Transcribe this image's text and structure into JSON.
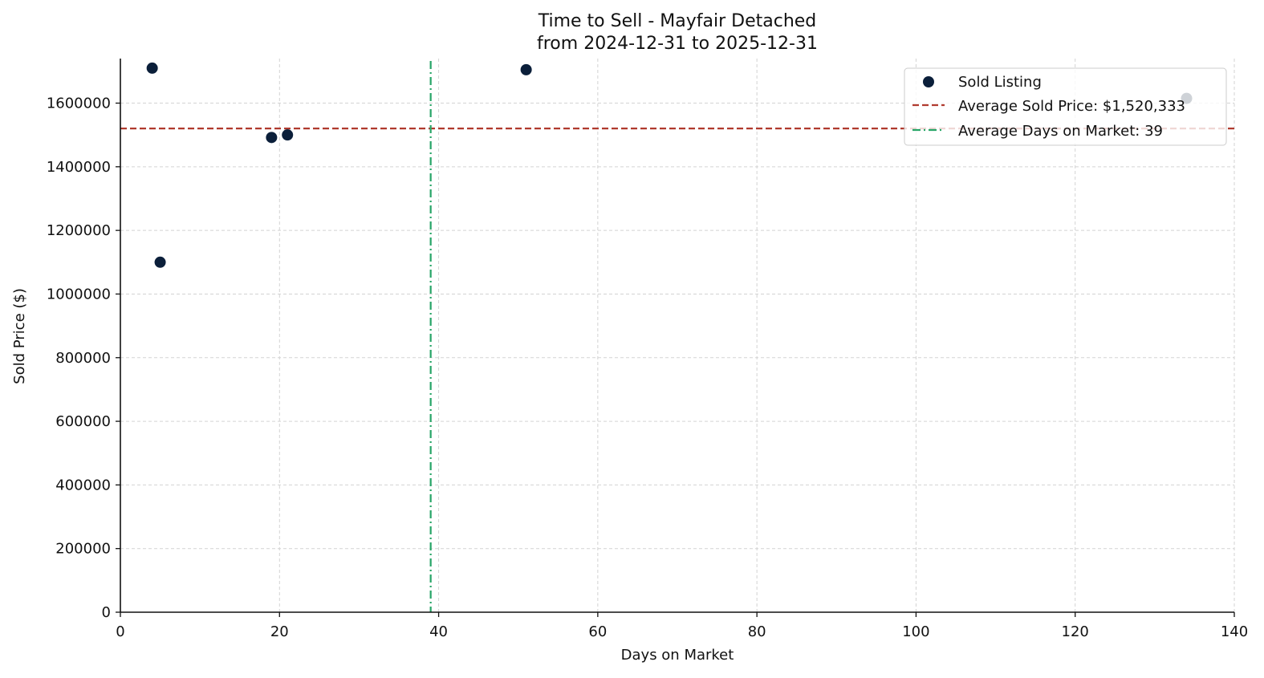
{
  "chart_data": {
    "type": "scatter",
    "title": "Time to Sell - Mayfair Detached",
    "subtitle": "from 2024-12-31 to 2025-12-31",
    "xlabel": "Days on Market",
    "ylabel": "Sold Price ($)",
    "xlim": [
      0,
      140
    ],
    "ylim": [
      0,
      1740000
    ],
    "xticks": [
      0,
      20,
      40,
      60,
      80,
      100,
      120,
      140
    ],
    "yticks": [
      0,
      200000,
      400000,
      600000,
      800000,
      1000000,
      1200000,
      1400000,
      1600000
    ],
    "grid": true,
    "legend_position": "top-right",
    "series": [
      {
        "name": "Sold Listing",
        "color": "#0b1f3a",
        "points": [
          {
            "x": 4,
            "y": 1710000
          },
          {
            "x": 5,
            "y": 1100000
          },
          {
            "x": 19,
            "y": 1492000
          },
          {
            "x": 21,
            "y": 1500000
          },
          {
            "x": 51,
            "y": 1705000
          },
          {
            "x": 134,
            "y": 1615000
          }
        ]
      }
    ],
    "reference_lines": [
      {
        "name": "Average Sold Price: $1,520,333",
        "orientation": "horizontal",
        "value": 1520333,
        "color": "#b03a2e",
        "style": "dashed"
      },
      {
        "name": "Average Days on Market: 39",
        "orientation": "vertical",
        "value": 39,
        "color": "#27a567",
        "style": "dashdot"
      }
    ]
  }
}
